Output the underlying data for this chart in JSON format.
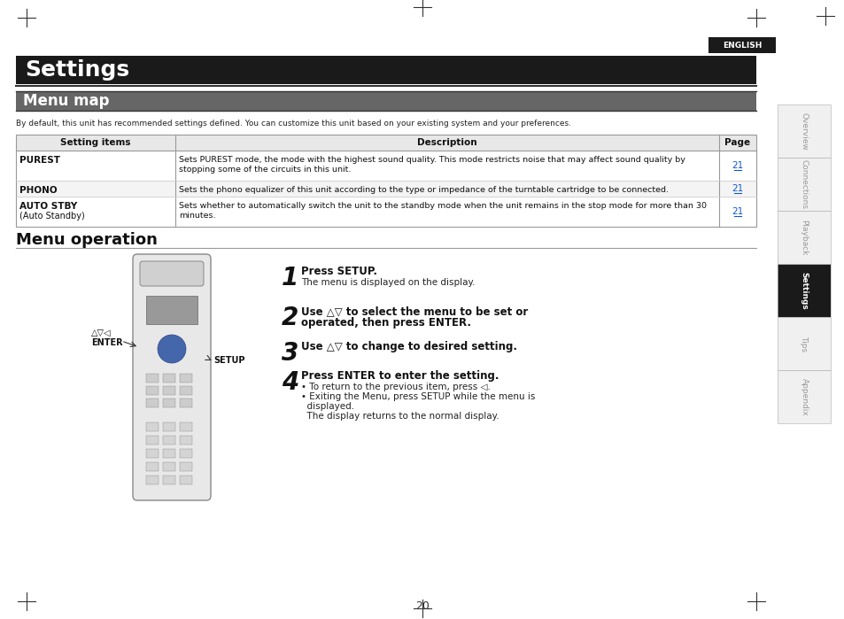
{
  "page_bg": "#ffffff",
  "title_settings": "Settings",
  "title_bg": "#1a1a1a",
  "title_color": "#ffffff",
  "section1_title": "Menu map",
  "section1_title_bg": "#666666",
  "section1_title_color": "#ffffff",
  "section2_title": "Menu operation",
  "section2_title_color": "#000000",
  "intro_text": "By default, this unit has recommended settings defined. You can customize this unit based on your existing system and your preferences.",
  "table_header": [
    "Setting items",
    "Description",
    "Page"
  ],
  "table_rows": [
    [
      "PUREST",
      "Sets PUREST mode, the mode with the highest sound quality. This mode restricts noise that may affect sound quality by\nstopping some of the circuits in this unit.",
      "21"
    ],
    [
      "PHONO",
      "Sets the phono equalizer of this unit according to the type or impedance of the turntable cartridge to be connected.",
      "21"
    ],
    [
      "AUTO STBY\n(Auto Standby)",
      "Sets whether to automatically switch the unit to the standby mode when the unit remains in the stop mode for more than 30\nminutes.",
      "21"
    ]
  ],
  "steps": [
    {
      "num": "1",
      "bold": "Press SETUP.",
      "normal": "The menu is displayed on the display."
    },
    {
      "num": "2",
      "bold": "Use △▽ to select the menu to be set or\noperated, then press ENTER.",
      "normal": ""
    },
    {
      "num": "3",
      "bold": "Use △▽ to change to desired setting.",
      "normal": ""
    },
    {
      "num": "4",
      "bold": "Press ENTER to enter the setting.",
      "normal": "• To return to the previous item, press ◁.\n• Exiting the Menu, press SETUP while the menu is\n  displayed.\n  The display returns to the normal display."
    }
  ],
  "sidebar_tabs": [
    "Overview",
    "Connections",
    "Playback",
    "Settings",
    "Tips",
    "Appendix"
  ],
  "sidebar_active": "Settings",
  "sidebar_active_bg": "#1a1a1a",
  "sidebar_active_color": "#ffffff",
  "sidebar_inactive_bg": "#f0f0f0",
  "sidebar_inactive_color": "#999999",
  "english_bg": "#1a1a1a",
  "english_color": "#ffffff",
  "page_number": "20",
  "enter_label": "ENTER",
  "setup_label": "SETUP"
}
